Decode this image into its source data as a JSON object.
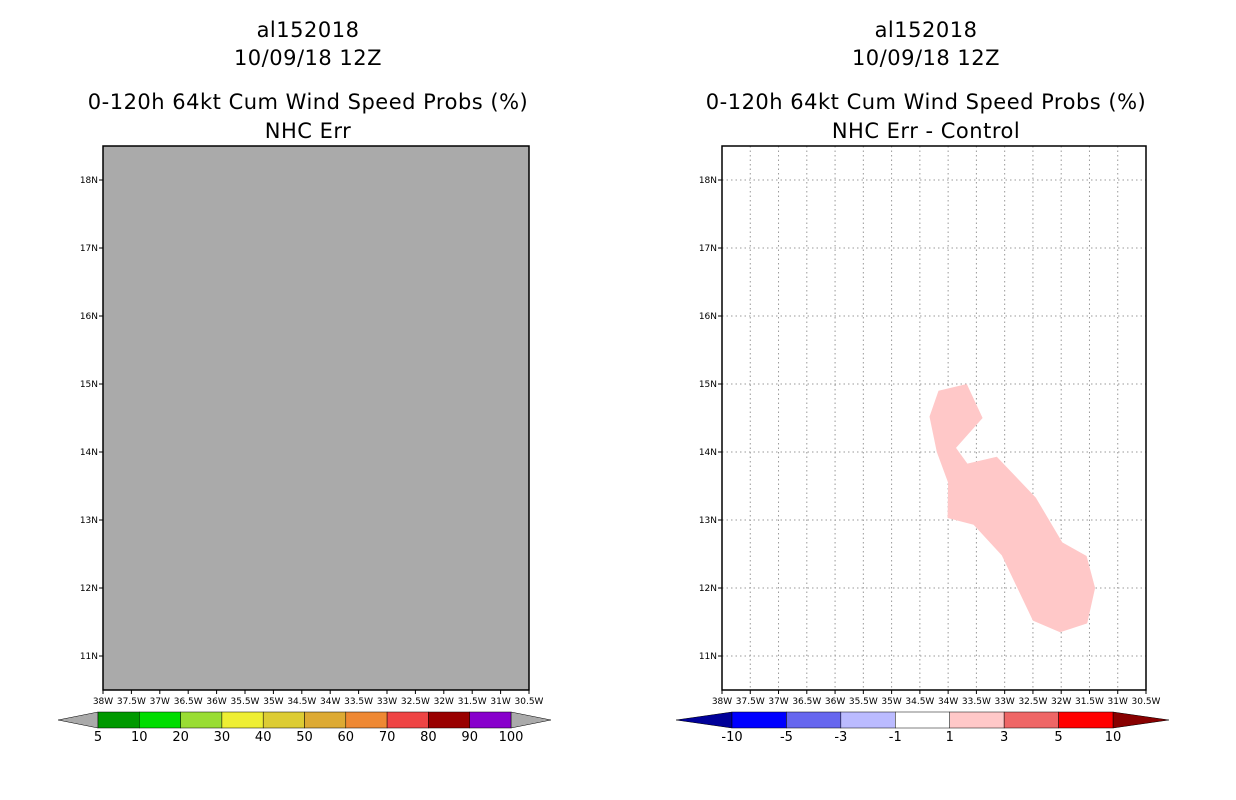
{
  "panels": [
    {
      "storm_id": "al152018",
      "date": "10/09/18 12Z",
      "product": "0-120h 64kt Cum Wind Speed Probs (%)",
      "subtitle": "NHC Err"
    },
    {
      "storm_id": "al152018",
      "date": "10/09/18 12Z",
      "product": "0-120h 64kt Cum Wind Speed Probs (%)",
      "subtitle": "NHC Err - Control"
    }
  ],
  "chart_data": [
    {
      "type": "heatmap",
      "title": "0-120h 64kt Cum Wind Speed Probs (%)",
      "subtitle": "NHC Err",
      "xlim": [
        -38,
        -30.5
      ],
      "ylim": [
        10.5,
        18.5
      ],
      "grid": false,
      "x_ticks": [
        -38,
        -37.5,
        -37,
        -36.5,
        -36,
        -35.5,
        -35,
        -34.5,
        -34,
        -33.5,
        -33,
        -32.5,
        -32,
        -31.5,
        -31,
        -30.5
      ],
      "x_tick_labels": [
        "38W",
        "37.5W",
        "37W",
        "36.5W",
        "36W",
        "35.5W",
        "35W",
        "34.5W",
        "34W",
        "33.5W",
        "33W",
        "32.5W",
        "32W",
        "31.5W",
        "31W",
        "30.5W"
      ],
      "y_ticks": [
        11,
        12,
        13,
        14,
        15,
        16,
        17,
        18
      ],
      "y_tick_labels": [
        "11N",
        "12N",
        "13N",
        "14N",
        "15N",
        "16N",
        "17N",
        "18N"
      ],
      "field_fill": "#aaaaaa",
      "colorbar": {
        "labels": [
          "5",
          "10",
          "20",
          "30",
          "40",
          "50",
          "60",
          "70",
          "80",
          "90",
          "100"
        ],
        "colors": [
          "#009900",
          "#00dd00",
          "#99dd33",
          "#eeee33",
          "#ddcc33",
          "#ddaa33",
          "#ee8833",
          "#ee4444",
          "#990000",
          "#8800cc"
        ],
        "under_color": "#aaaaaa",
        "over_color": "#aaaaaa"
      }
    },
    {
      "type": "heatmap",
      "title": "0-120h 64kt Cum Wind Speed Probs (%)",
      "subtitle": "NHC Err - Control",
      "xlim": [
        -38,
        -30.5
      ],
      "ylim": [
        10.5,
        18.5
      ],
      "grid": true,
      "x_ticks": [
        -38,
        -37.5,
        -37,
        -36.5,
        -36,
        -35.5,
        -35,
        -34.5,
        -34,
        -33.5,
        -33,
        -32.5,
        -32,
        -31.5,
        -31,
        -30.5
      ],
      "x_tick_labels": [
        "38W",
        "37.5W",
        "37W",
        "36.5W",
        "36W",
        "35.5W",
        "35W",
        "34.5W",
        "34W",
        "33.5W",
        "33W",
        "32.5W",
        "32W",
        "31.5W",
        "31W",
        "30.5W"
      ],
      "y_ticks": [
        11,
        12,
        13,
        14,
        15,
        16,
        17,
        18
      ],
      "y_tick_labels": [
        "11N",
        "12N",
        "13N",
        "14N",
        "15N",
        "16N",
        "17N",
        "18N"
      ],
      "regions": [
        {
          "range": "1 to 3",
          "color": "#ffc8c8",
          "polygon_lonlat": [
            [
              -34.17,
              14.9
            ],
            [
              -33.67,
              15.0
            ],
            [
              -33.39,
              14.5
            ],
            [
              -33.86,
              14.06
            ],
            [
              -33.66,
              13.83
            ],
            [
              -33.14,
              13.93
            ],
            [
              -32.45,
              13.33
            ],
            [
              -31.98,
              12.67
            ],
            [
              -31.55,
              12.47
            ],
            [
              -31.4,
              12.0
            ],
            [
              -31.54,
              11.48
            ],
            [
              -32.02,
              11.35
            ],
            [
              -32.5,
              11.52
            ],
            [
              -33.05,
              12.48
            ],
            [
              -33.55,
              12.93
            ],
            [
              -34.01,
              13.03
            ],
            [
              -34.0,
              13.55
            ],
            [
              -34.2,
              14.0
            ],
            [
              -34.33,
              14.52
            ]
          ]
        }
      ],
      "colorbar": {
        "labels": [
          "-10",
          "-5",
          "-3",
          "-1",
          "1",
          "3",
          "5",
          "10"
        ],
        "colors": [
          "#0000ff",
          "#6666ee",
          "#bbbbff",
          "#ffffff",
          "#ffc8c8",
          "#ee6666",
          "#ff0000"
        ],
        "under_color": "#000099",
        "over_color": "#880000"
      }
    }
  ]
}
